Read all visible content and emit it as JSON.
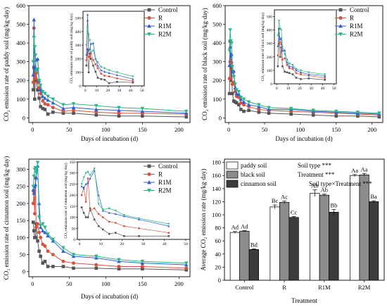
{
  "colors": {
    "Control": "#555555",
    "R": "#d94f3d",
    "R1M": "#2e5fd4",
    "R2M": "#2bb38a"
  },
  "chart_data": [
    {
      "id": "paddy",
      "type": "line",
      "ylabel": "CO₂ emission rate of paddy soil (mg/kg·day)",
      "xlabel": "Days of incubation (d)",
      "xlim": [
        -5,
        215
      ],
      "ylim": [
        -25,
        600
      ],
      "xticks": [
        0,
        50,
        100,
        150,
        200
      ],
      "yticks": [
        0,
        100,
        200,
        300,
        400,
        500,
        600
      ],
      "legend": [
        "Control",
        "R",
        "R1M",
        "R2M"
      ],
      "x": [
        1,
        2,
        3,
        4,
        5,
        7,
        9,
        11,
        14,
        17,
        21,
        28,
        42,
        56,
        87,
        118,
        150,
        210
      ],
      "series": [
        {
          "name": "Control",
          "values": [
            150,
            270,
            100,
            240,
            200,
            150,
            105,
            60,
            50,
            45,
            20,
            30,
            25,
            25,
            15,
            10,
            10,
            5
          ]
        },
        {
          "name": "R",
          "values": [
            190,
            480,
            215,
            210,
            240,
            190,
            160,
            130,
            90,
            75,
            70,
            55,
            35,
            40,
            30,
            25,
            25,
            20
          ]
        },
        {
          "name": "R1M",
          "values": [
            230,
            525,
            260,
            270,
            310,
            315,
            200,
            150,
            115,
            105,
            95,
            80,
            50,
            55,
            45,
            40,
            35,
            25
          ]
        },
        {
          "name": "R2M",
          "values": [
            300,
            430,
            380,
            335,
            250,
            260,
            200,
            175,
            140,
            130,
            115,
            100,
            70,
            75,
            65,
            55,
            50,
            35
          ]
        }
      ],
      "inset": {
        "ylabel": "CO₂ emission rate of paddy soil (mg/kg·day)",
        "xlim": [
          -2,
          52
        ],
        "ylim": [
          0,
          550
        ],
        "xticks": [
          0,
          10,
          20,
          30,
          40,
          50
        ],
        "yticks": [
          0,
          100,
          200,
          300,
          400,
          500
        ]
      }
    },
    {
      "id": "black",
      "type": "line",
      "ylabel": "CO₂ emission rate of black soil (mg/kg·day)",
      "xlabel": "Days of incubation (d)",
      "xlim": [
        -5,
        215
      ],
      "ylim": [
        -25,
        600
      ],
      "xticks": [
        0,
        50,
        100,
        150,
        200
      ],
      "yticks": [
        0,
        100,
        200,
        300,
        400,
        500,
        600
      ],
      "legend": [
        "Control",
        "R",
        "R1M",
        "R2M"
      ],
      "x": [
        1,
        2,
        3,
        4,
        5,
        7,
        9,
        11,
        14,
        17,
        21,
        28,
        42,
        56,
        87,
        118,
        150,
        180,
        210
      ],
      "series": [
        {
          "name": "Control",
          "values": [
            130,
            410,
            200,
            270,
            130,
            90,
            85,
            80,
            70,
            45,
            35,
            40,
            30,
            25,
            20,
            15,
            10,
            10,
            5
          ]
        },
        {
          "name": "R",
          "values": [
            210,
            300,
            310,
            295,
            180,
            190,
            140,
            115,
            110,
            80,
            70,
            60,
            45,
            40,
            35,
            30,
            25,
            20,
            15
          ]
        },
        {
          "name": "R1M",
          "values": [
            280,
            380,
            330,
            340,
            245,
            250,
            160,
            130,
            125,
            100,
            85,
            70,
            60,
            45,
            45,
            35,
            30,
            25,
            20
          ]
        },
        {
          "name": "R2M",
          "values": [
            360,
            470,
            410,
            400,
            275,
            220,
            180,
            150,
            140,
            110,
            100,
            85,
            70,
            55,
            50,
            40,
            35,
            30,
            25
          ]
        }
      ],
      "inset": {
        "ylabel": "CO₂ emission rate of black soil (mg/kg·day)",
        "xlim": [
          -2,
          52
        ],
        "ylim": [
          0,
          550
        ],
        "xticks": [
          0,
          10,
          20,
          30,
          40,
          50
        ],
        "yticks": [
          0,
          100,
          200,
          300,
          400,
          500
        ]
      }
    },
    {
      "id": "cinnamon",
      "type": "line",
      "ylabel": "CO₂ emission rate of cinnamon soil (mg/kg·day)",
      "xlabel": "Days of incubation (d)",
      "xlim": [
        -5,
        215
      ],
      "ylim": [
        -15,
        330
      ],
      "xticks": [
        0,
        50,
        100,
        150,
        200
      ],
      "yticks": [
        0,
        50,
        100,
        150,
        200,
        250,
        300
      ],
      "legend": [
        "Control",
        "R",
        "R1M",
        "R2M"
      ],
      "x": [
        1,
        2,
        3,
        4,
        5,
        7,
        9,
        11,
        14,
        17,
        21,
        28,
        42,
        56,
        87,
        118,
        150,
        210
      ],
      "series": [
        {
          "name": "Control",
          "values": [
            145,
            120,
            100,
            100,
            140,
            90,
            60,
            45,
            25,
            30,
            15,
            15,
            15,
            10,
            10,
            8,
            8,
            5
          ]
        },
        {
          "name": "R",
          "values": [
            200,
            235,
            170,
            275,
            130,
            140,
            115,
            100,
            80,
            75,
            60,
            50,
            30,
            25,
            20,
            15,
            15,
            10
          ]
        },
        {
          "name": "R1M",
          "values": [
            240,
            230,
            250,
            255,
            275,
            310,
            200,
            130,
            120,
            115,
            105,
            90,
            60,
            45,
            40,
            30,
            25,
            20
          ]
        },
        {
          "name": "R2M",
          "values": [
            250,
            280,
            300,
            305,
            290,
            320,
            160,
            135,
            140,
            130,
            110,
            95,
            70,
            50,
            45,
            35,
            30,
            25
          ]
        }
      ],
      "inset": {
        "ylabel": "CO₂ emission rate of cinnamon soil (mg/kg·day)",
        "xlim": [
          -1,
          52
        ],
        "ylim": [
          0,
          350
        ],
        "xticks": [
          0,
          10,
          20,
          30,
          40,
          50
        ],
        "yticks": [
          0,
          50,
          100,
          150,
          200,
          250,
          300,
          350
        ]
      }
    },
    {
      "id": "avg",
      "type": "bar",
      "ylabel": "Average CO₂ emission rate (mg/kg·day)",
      "xlabel": "Treatment",
      "ylim": [
        0,
        185
      ],
      "yticks": [
        0,
        20,
        40,
        60,
        80,
        100,
        120,
        140,
        160,
        180
      ],
      "categories": [
        "Control",
        "R",
        "R1M",
        "R2M"
      ],
      "series": [
        {
          "name": "paddy soil",
          "values": [
            73,
            112,
            133,
            160
          ],
          "err": [
            1.5,
            3,
            5,
            1.5
          ],
          "labels": [
            "Ad",
            "Bc",
            "Ab",
            "Aa"
          ]
        },
        {
          "name": "black soil",
          "values": [
            75,
            119,
            130,
            161
          ],
          "err": [
            1,
            2,
            1.5,
            2
          ],
          "labels": [
            "Ad",
            "Ac",
            "Ab",
            "Aa"
          ]
        },
        {
          "name": "cinnamon soil",
          "values": [
            47,
            96,
            104,
            120
          ],
          "err": [
            1,
            1.5,
            4,
            1.5
          ],
          "labels": [
            "Bd",
            "Cc",
            "Bb",
            "Ba"
          ]
        }
      ],
      "bar_colors": [
        "#ffffff",
        "#8c8c8c",
        "#3c3c3c"
      ],
      "stats": [
        {
          "label": "Soil type",
          "sig": "***"
        },
        {
          "label": "Treatment",
          "sig": "***"
        },
        {
          "label": "Soil type×Treatment",
          "sig": "***"
        }
      ]
    }
  ]
}
